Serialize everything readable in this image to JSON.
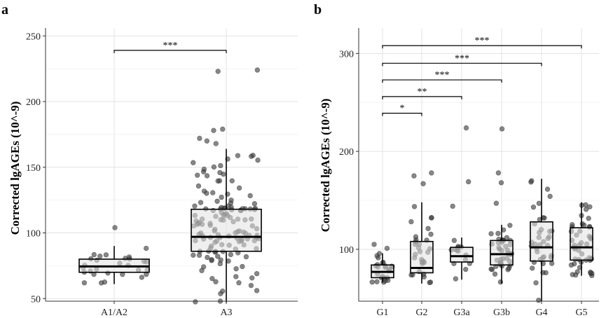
{
  "chart_data": [
    {
      "panel": "a",
      "type": "box",
      "ylabel": "Corrected lgAGEs (10^-9)",
      "xlabel": "",
      "ylim": [
        48,
        256
      ],
      "yticks": [
        50,
        100,
        150,
        200,
        250
      ],
      "categories": [
        "A1/A2",
        "A3"
      ],
      "boxes": [
        {
          "name": "A1/A2",
          "q1": 70,
          "median": 74.5,
          "q3": 80,
          "whisker_low": 61,
          "whisker_high": 90,
          "n": 28,
          "outliers": [
            104
          ],
          "spread": 19
        },
        {
          "name": "A3",
          "q1": 86,
          "median": 97,
          "q3": 118,
          "whisker_low": 47,
          "whisker_high": 164,
          "n": 140,
          "outliers": [
            223,
            224,
            170,
            172,
            178,
            179,
            168
          ],
          "spread": 75
        }
      ],
      "significance": [
        {
          "from": "A1/A2",
          "to": "A3",
          "label": "***",
          "y": 239
        }
      ]
    },
    {
      "panel": "b",
      "type": "box",
      "ylabel": "Corrected lgAGEs (10^-9)",
      "xlabel": "",
      "ylim": [
        47,
        326
      ],
      "yticks": [
        100,
        200,
        300
      ],
      "categories": [
        "G1",
        "G2",
        "G3a",
        "G3b",
        "G4",
        "G5"
      ],
      "boxes": [
        {
          "name": "G1",
          "q1": 71,
          "median": 77,
          "q3": 84,
          "whisker_low": 66,
          "whisker_high": 96,
          "n": 24,
          "outliers": [
            105,
            101
          ],
          "spread": 24
        },
        {
          "name": "G2",
          "q1": 76,
          "median": 81,
          "q3": 108,
          "whisker_low": 65,
          "whisker_high": 148,
          "n": 30,
          "outliers": [
            178,
            175,
            167
          ],
          "spread": 65
        },
        {
          "name": "G3a",
          "q1": 87,
          "median": 93,
          "q3": 102,
          "whisker_low": 69,
          "whisker_high": 112,
          "n": 14,
          "outliers": [
            224,
            169,
            144
          ],
          "spread": 30
        },
        {
          "name": "G3b",
          "q1": 84,
          "median": 95,
          "q3": 109,
          "whisker_low": 65,
          "whisker_high": 125,
          "n": 40,
          "outliers": [
            223,
            178,
            168,
            147
          ],
          "spread": 48
        },
        {
          "name": "G4",
          "q1": 88,
          "median": 102,
          "q3": 128,
          "whisker_low": 47,
          "whisker_high": 172,
          "n": 38,
          "outliers": [],
          "spread": 80
        },
        {
          "name": "G5",
          "q1": 89,
          "median": 102,
          "q3": 122,
          "whisker_low": 73,
          "whisker_high": 148,
          "n": 45,
          "outliers": [],
          "spread": 62
        }
      ],
      "significance": [
        {
          "from": "G1",
          "to": "G2",
          "label": "*",
          "y": 239
        },
        {
          "from": "G1",
          "to": "G3a",
          "label": "**",
          "y": 256
        },
        {
          "from": "G1",
          "to": "G3b",
          "label": "***",
          "y": 273
        },
        {
          "from": "G1",
          "to": "G4",
          "label": "***",
          "y": 290
        },
        {
          "from": "G1",
          "to": "G5",
          "label": "***",
          "y": 308
        }
      ]
    }
  ]
}
